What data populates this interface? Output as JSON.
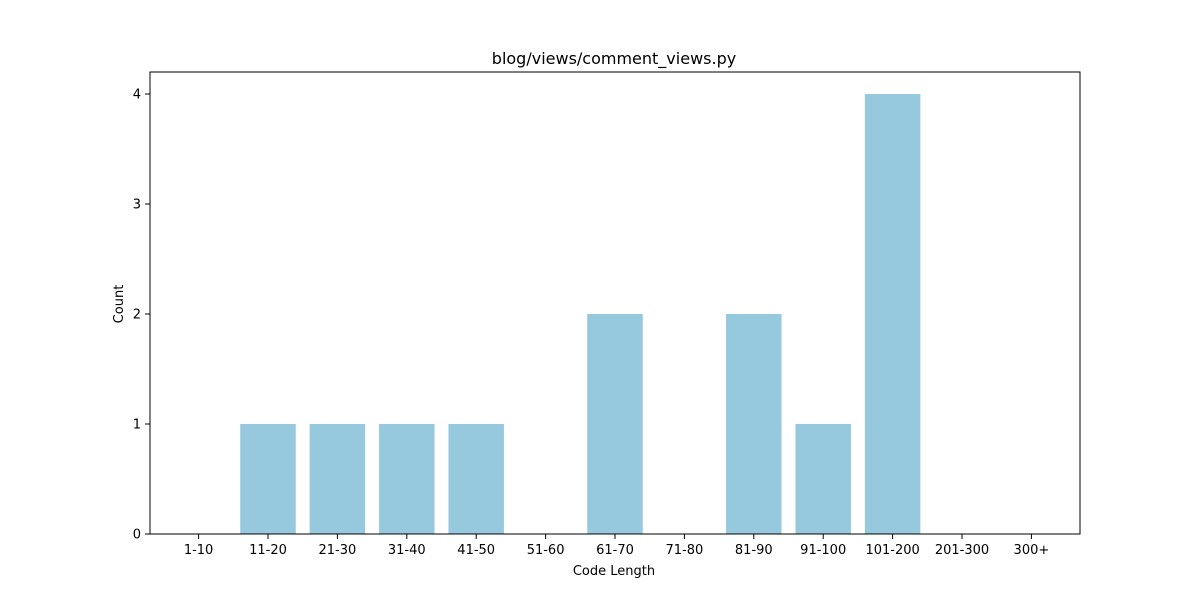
{
  "chart_data": {
    "type": "bar",
    "title": "blog/views/comment_views.py",
    "xlabel": "Code Length",
    "ylabel": "Count",
    "categories": [
      "1-10",
      "11-20",
      "21-30",
      "31-40",
      "41-50",
      "51-60",
      "61-70",
      "71-80",
      "81-90",
      "91-100",
      "101-200",
      "201-300",
      "300+"
    ],
    "values": [
      0,
      1,
      1,
      1,
      1,
      0,
      2,
      0,
      2,
      1,
      4,
      0,
      0
    ],
    "ylim": [
      0,
      4.2
    ],
    "yticks": [
      0,
      1,
      2,
      3,
      4
    ],
    "bar_color": "#96c9de",
    "grid": false,
    "legend": "none"
  }
}
